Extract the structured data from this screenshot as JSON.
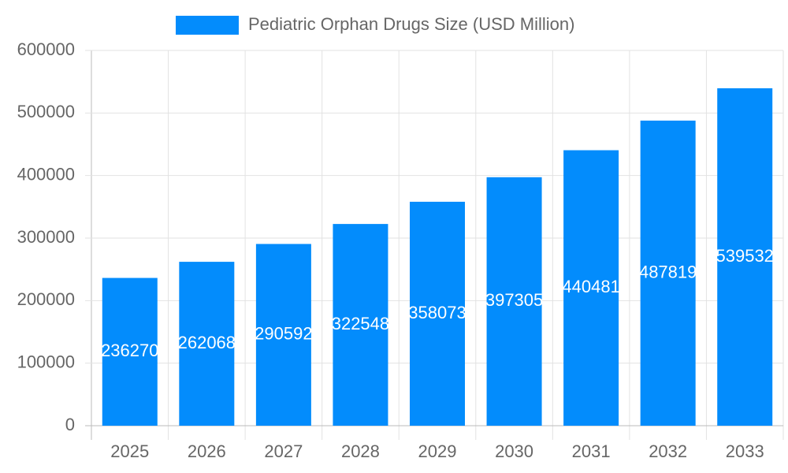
{
  "chart_data": {
    "type": "bar",
    "categories": [
      "2025",
      "2026",
      "2027",
      "2028",
      "2029",
      "2030",
      "2031",
      "2032",
      "2033"
    ],
    "series": [
      {
        "name": "Pediatric Orphan Drugs Size (USD Million)",
        "color": "#038cfc",
        "values": [
          236270,
          262068,
          290592,
          322548,
          358073,
          397305,
          440481,
          487819,
          539532
        ]
      }
    ],
    "ylim": [
      0,
      600000
    ],
    "yticks": [
      0,
      100000,
      200000,
      300000,
      400000,
      500000,
      600000
    ],
    "grid": true,
    "legend": "top",
    "data_labels": true
  }
}
